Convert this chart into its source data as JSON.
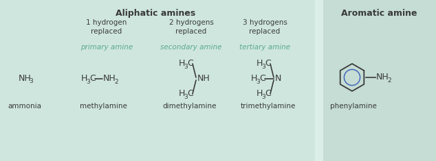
{
  "bg_aliphatic": "#cfe6df",
  "bg_aromatic": "#c5ddd4",
  "bg_outer": "#dceee8",
  "title_aliphatic": "Aliphatic amines",
  "title_aromatic": "Aromatic amine",
  "col_headers": [
    "1 hydrogen\nreplaced",
    "2 hydrogens\nreplaced",
    "3 hydrogens\nreplaced"
  ],
  "amine_labels": [
    "primary amine",
    "secondary amine",
    "tertiary amine"
  ],
  "amine_color": "#5aaa8a",
  "molecule_names": [
    "ammonia",
    "methylamine",
    "dimethylamine",
    "trimethylamine",
    "phenylamine"
  ],
  "text_color": "#3a3a3a",
  "bond_color": "#3a3a3a",
  "ring_bond_color": "#3a3a3a",
  "ring_inner_color": "#4466bb",
  "fig_width": 6.34,
  "fig_height": 2.35
}
